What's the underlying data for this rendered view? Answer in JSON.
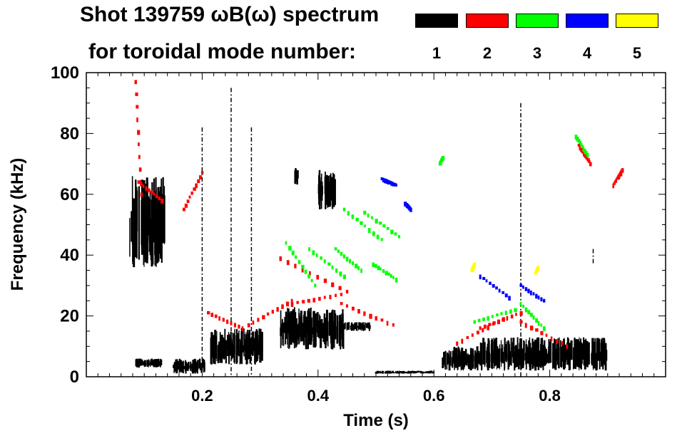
{
  "title": {
    "line1": "Shot 139759 ωB(ω) spectrum",
    "line2": "for toroidal mode number:"
  },
  "legend": [
    {
      "label": "1",
      "color": "#000000"
    },
    {
      "label": "2",
      "color": "#ff0000"
    },
    {
      "label": "3",
      "color": "#00ff00"
    },
    {
      "label": "4",
      "color": "#0000ff"
    },
    {
      "label": "5",
      "color": "#ffff00"
    }
  ],
  "chart_data": {
    "type": "heatmap",
    "title": "Shot 139759 ωB(ω) spectrum",
    "xlabel": "Time (s)",
    "ylabel": "Frequency (kHz)",
    "xlim": [
      0.0,
      1.0
    ],
    "ylim": [
      0,
      100
    ],
    "xticks": [
      0.2,
      0.4,
      0.6,
      0.8
    ],
    "xtick_labels": [
      "0.2",
      "0.4",
      "0.6",
      "0.8"
    ],
    "yticks": [
      0,
      20,
      40,
      60,
      80,
      100
    ],
    "ytick_labels": [
      "0",
      "20",
      "40",
      "60",
      "80",
      "100"
    ],
    "series": [
      {
        "name": "n=1",
        "color": "#000000",
        "regions": [
          {
            "t": [
              0.075,
              0.135
            ],
            "f": [
              36,
              66
            ]
          },
          {
            "t": [
              0.085,
              0.13
            ],
            "f": [
              3,
              6
            ]
          },
          {
            "t": [
              0.15,
              0.205
            ],
            "f": [
              1,
              6
            ]
          },
          {
            "t": [
              0.215,
              0.305
            ],
            "f": [
              4,
              16
            ]
          },
          {
            "t": [
              0.335,
              0.445
            ],
            "f": [
              9,
              23
            ]
          },
          {
            "t": [
              0.445,
              0.49
            ],
            "f": [
              15,
              18
            ]
          },
          {
            "t": [
              0.36,
              0.365
            ],
            "f": [
              63,
              69
            ]
          },
          {
            "t": [
              0.4,
              0.43
            ],
            "f": [
              55,
              68
            ]
          },
          {
            "t": [
              0.615,
              0.68
            ],
            "f": [
              2,
              10
            ]
          },
          {
            "t": [
              0.68,
              0.9
            ],
            "f": [
              2,
              13
            ]
          },
          {
            "t": [
              0.5,
              0.6
            ],
            "f": [
              1,
              2
            ]
          }
        ],
        "lines": [
          {
            "t": 0.285,
            "f": [
              0,
              82
            ]
          },
          {
            "t": 0.25,
            "f": [
              0,
              95
            ]
          },
          {
            "t": 0.2,
            "f": [
              2,
              82
            ]
          },
          {
            "t": 0.75,
            "f": [
              0,
              90
            ]
          },
          {
            "t": 0.875,
            "f": [
              37,
              42
            ]
          }
        ]
      },
      {
        "name": "n=2",
        "color": "#ff0000",
        "chirps": [
          {
            "t": [
              0.085,
              0.095
            ],
            "f": [
              97,
              60
            ]
          },
          {
            "t": [
              0.09,
              0.13
            ],
            "f": [
              64,
              58
            ]
          },
          {
            "t": [
              0.168,
              0.2
            ],
            "f": [
              55,
              67
            ]
          },
          {
            "t": [
              0.21,
              0.27
            ],
            "f": [
              21,
              16
            ]
          },
          {
            "t": [
              0.28,
              0.355
            ],
            "f": [
              17,
              25
            ]
          },
          {
            "t": [
              0.355,
              0.44
            ],
            "f": [
              24,
              27
            ]
          },
          {
            "t": [
              0.44,
              0.53
            ],
            "f": [
              24,
              17
            ]
          },
          {
            "t": [
              0.335,
              0.45
            ],
            "f": [
              39,
              28
            ]
          },
          {
            "t": [
              0.64,
              0.72
            ],
            "f": [
              11,
              19
            ]
          },
          {
            "t": [
              0.68,
              0.75
            ],
            "f": [
              16,
              21
            ]
          },
          {
            "t": [
              0.75,
              0.83
            ],
            "f": [
              18,
              10
            ]
          },
          {
            "t": [
              0.85,
              0.87
            ],
            "f": [
              76,
              70
            ]
          },
          {
            "t": [
              0.91,
              0.925
            ],
            "f": [
              63,
              68
            ]
          }
        ]
      },
      {
        "name": "n=3",
        "color": "#00ff00",
        "chirps": [
          {
            "t": [
              0.345,
              0.395
            ],
            "f": [
              44,
              30
            ]
          },
          {
            "t": [
              0.385,
              0.445
            ],
            "f": [
              42,
              33
            ]
          },
          {
            "t": [
              0.43,
              0.475
            ],
            "f": [
              42,
              35
            ]
          },
          {
            "t": [
              0.445,
              0.51
            ],
            "f": [
              55,
              45
            ]
          },
          {
            "t": [
              0.48,
              0.54
            ],
            "f": [
              54,
              46
            ]
          },
          {
            "t": [
              0.495,
              0.535
            ],
            "f": [
              37,
              32
            ]
          },
          {
            "t": [
              0.61,
              0.615
            ],
            "f": [
              70,
              72
            ]
          },
          {
            "t": [
              0.67,
              0.74
            ],
            "f": [
              18,
              22
            ]
          },
          {
            "t": [
              0.75,
              0.79
            ],
            "f": [
              24,
              16
            ]
          },
          {
            "t": [
              0.845,
              0.865
            ],
            "f": [
              79,
              73
            ]
          }
        ]
      },
      {
        "name": "n=4",
        "color": "#0000ff",
        "chirps": [
          {
            "t": [
              0.51,
              0.535
            ],
            "f": [
              65,
              63
            ]
          },
          {
            "t": [
              0.55,
              0.56
            ],
            "f": [
              57,
              55
            ]
          },
          {
            "t": [
              0.68,
              0.73
            ],
            "f": [
              33,
              26
            ]
          },
          {
            "t": [
              0.75,
              0.79
            ],
            "f": [
              30,
              25
            ]
          }
        ]
      },
      {
        "name": "n=5",
        "color": "#ffff00",
        "chirps": [
          {
            "t": [
              0.665,
              0.67
            ],
            "f": [
              35,
              37
            ]
          },
          {
            "t": [
              0.775,
              0.78
            ],
            "f": [
              34,
              36
            ]
          }
        ]
      }
    ]
  }
}
